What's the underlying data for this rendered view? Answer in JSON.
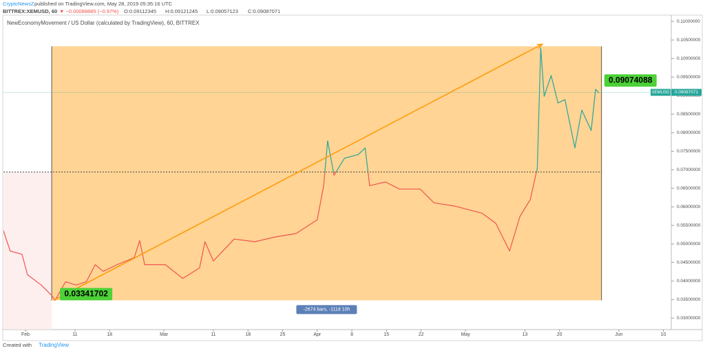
{
  "header": {
    "author": "CryptoNewsZ",
    "published": "published on TradingView.com, May 28, 2019 05:35:16 UTC",
    "symbol": "BITTREX:XEMUSD, 60",
    "change": "▼ −0.00088885 (−0.97%)",
    "open": "O:0.09112345",
    "high": "H:0.09121245",
    "low": "L:0.09057123",
    "close": "C:0.09087071"
  },
  "footer": {
    "text": "Created with",
    "brand": "TradingView"
  },
  "chart_data": {
    "type": "line",
    "title": "NewEconomyMovement / US Dollar (calculated by TradingView), 60, BITTREX",
    "symbol_label": "XEMUSD",
    "last_price": 0.09087071,
    "reference_line": 0.0694,
    "up_color": "#26a69a",
    "down_color": "#ef5350",
    "xlim": [
      -4.46,
      130.6
    ],
    "ylim": [
      0.0269,
      0.1117
    ],
    "xticks": [
      {
        "value": 0,
        "label": "Feb"
      },
      {
        "value": 10,
        "label": "11"
      },
      {
        "value": 17,
        "label": "18"
      },
      {
        "value": 28,
        "label": "Mar"
      },
      {
        "value": 38,
        "label": "11"
      },
      {
        "value": 45,
        "label": "18"
      },
      {
        "value": 52,
        "label": "25"
      },
      {
        "value": 59,
        "label": "Apr"
      },
      {
        "value": 66,
        "label": "8"
      },
      {
        "value": 73,
        "label": "15"
      },
      {
        "value": 80,
        "label": "22"
      },
      {
        "value": 89,
        "label": "May"
      },
      {
        "value": 101,
        "label": "13"
      },
      {
        "value": 108,
        "label": "20"
      },
      {
        "value": 120,
        "label": "Jun"
      },
      {
        "value": 129,
        "label": "10"
      }
    ],
    "yticks": [
      {
        "value": 0.03,
        "label": "0.03000000"
      },
      {
        "value": 0.035,
        "label": "0.03500000"
      },
      {
        "value": 0.04,
        "label": "0.04000000"
      },
      {
        "value": 0.045,
        "label": "0.04500000"
      },
      {
        "value": 0.05,
        "label": "0.05000000"
      },
      {
        "value": 0.055,
        "label": "0.05500000"
      },
      {
        "value": 0.06,
        "label": "0.06000000"
      },
      {
        "value": 0.065,
        "label": "0.06500000"
      },
      {
        "value": 0.07,
        "label": "0.07000000"
      },
      {
        "value": 0.075,
        "label": "0.07500000"
      },
      {
        "value": 0.08,
        "label": "0.08000000"
      },
      {
        "value": 0.085,
        "label": "0.08500000"
      },
      {
        "value": 0.09,
        "label": "0.09000000"
      },
      {
        "value": 0.095,
        "label": "0.09500000"
      },
      {
        "value": 0.1,
        "label": "0.10000000"
      },
      {
        "value": 0.105,
        "label": "0.10500000"
      },
      {
        "value": 0.11,
        "label": "0.11000000"
      }
    ],
    "x": [
      -4.5,
      -3.1,
      -0.7,
      0.4,
      3.2,
      5.3,
      6.0,
      8.1,
      10.2,
      12.3,
      14.1,
      15.7,
      18.5,
      22,
      23.1,
      24.1,
      28.3,
      31.8,
      35.2,
      36.3,
      38,
      42.2,
      46.4,
      50.6,
      54.7,
      59,
      60.3,
      61.1,
      62.4,
      64.5,
      67.3,
      68.7,
      69.6,
      72.8,
      75.6,
      79.8,
      82.6,
      86.8,
      92.3,
      95.1,
      97.9,
      100,
      102.1,
      103.5,
      104.2,
      104.9,
      106.3,
      107.7,
      109.1,
      111.1,
      112.5,
      114.4,
      115.3,
      116
    ],
    "series": [
      {
        "values": [
          0.0537,
          0.0481,
          0.0472,
          0.0417,
          0.0389,
          0.0361,
          0.0348,
          0.0398,
          0.0389,
          0.0398,
          0.0444,
          0.0426,
          0.0444,
          0.0463,
          0.0509,
          0.0444,
          0.0444,
          0.0407,
          0.0435,
          0.0506,
          0.0454,
          0.0513,
          0.0506,
          0.0519,
          0.0528,
          0.0565,
          0.0657,
          0.0778,
          0.0685,
          0.0731,
          0.0741,
          0.0759,
          0.0657,
          0.0667,
          0.0648,
          0.0648,
          0.0611,
          0.0602,
          0.0583,
          0.0556,
          0.0481,
          0.0574,
          0.062,
          0.0704,
          0.1028,
          0.0898,
          0.0954,
          0.088,
          0.0889,
          0.0759,
          0.0861,
          0.0806,
          0.0917,
          0.0907
        ]
      }
    ],
    "measure": {
      "x0": 5.3,
      "x1": 116.5,
      "y0": 0.0348,
      "y1": 0.1033,
      "info": "-2674 bars, -111d 10h",
      "start_value": 0.03341702,
      "end_value": 0.09074088
    }
  }
}
